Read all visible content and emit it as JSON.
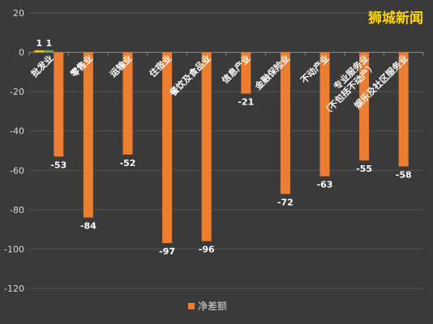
{
  "watermark": "狮城新闻",
  "chart_data": {
    "type": "bar",
    "categories": [
      "批发业",
      "零售业",
      "运输业",
      "住宿业",
      "餐饮及食品业",
      "信息产业",
      "金融保险业",
      "不动产业",
      "专业服务业（不包括不动产）",
      "娱乐及社区服务业"
    ],
    "series": [
      {
        "name": "",
        "color": "#ffc000",
        "values": [
          1,
          null,
          null,
          null,
          null,
          null,
          null,
          null,
          null,
          null
        ]
      },
      {
        "name": "",
        "color": "#70ad47",
        "values": [
          1,
          null,
          null,
          null,
          null,
          null,
          null,
          null,
          null,
          null
        ]
      },
      {
        "name": "净差额",
        "color": "#ed7d31",
        "values": [
          -53,
          -84,
          -52,
          -97,
          -96,
          -21,
          -72,
          -63,
          -55,
          -58
        ]
      }
    ],
    "ylim": [
      -120,
      20
    ],
    "yticks": [
      20,
      0,
      -20,
      -40,
      -60,
      -80,
      -100,
      -120
    ],
    "grid": true,
    "legend": "bottom",
    "legend_label": "净差额",
    "xlabel": "",
    "ylabel": ""
  }
}
